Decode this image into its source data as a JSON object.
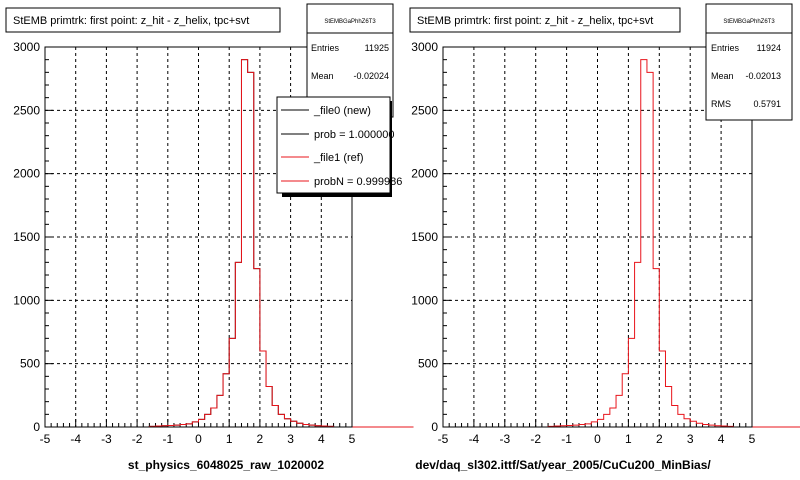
{
  "colors": {
    "ref": "#e8141b",
    "new": "#000000"
  },
  "panels": [
    {
      "title": "StEMB primtrk: first point: z_hit - z_helix, tpc+svt",
      "stats": {
        "name": "StEMBGaPhhZ6T3",
        "rows": [
          {
            "label": "Entries",
            "value": "11925"
          },
          {
            "label": "Mean",
            "value": "-0.02024"
          }
        ]
      },
      "legend": [
        {
          "label": "_file0 (new)",
          "color": "#000000"
        },
        {
          "label": "prob = 1.000000",
          "color": "#000000"
        },
        {
          "label": "_file1 (ref)",
          "color": "#e8141b"
        },
        {
          "label": "probN = 0.999986",
          "color": "#e8141b"
        }
      ],
      "xlabel": "st_physics_6048025_raw_1020002"
    },
    {
      "title": "StEMB primtrk: first point: z_hit - z_helix, tpc+svt",
      "stats": {
        "name": "StEMBGaPhhZ6T3",
        "rows": [
          {
            "label": "Entries",
            "value": "11924"
          },
          {
            "label": "Mean",
            "value": "-0.02013"
          },
          {
            "label": "RMS",
            "value": "0.5791"
          }
        ]
      },
      "legend": [],
      "xlabel": "dev/daq_sl302.ittf/Sat/year_2005/CuCu200_MinBias/"
    }
  ],
  "chart_data": [
    {
      "type": "bar",
      "histogram": true,
      "title": "StEMB primtrk: first point: z_hit - z_helix, tpc+svt",
      "xlabel": "st_physics_6048025_raw_1020002",
      "ylabel": "",
      "xlim": [
        -5,
        5
      ],
      "ylim": [
        0,
        3000
      ],
      "bin_width": 0.2,
      "xticks": [
        -5,
        -4,
        -3,
        -2,
        -1,
        0,
        1,
        2,
        3,
        4,
        5
      ],
      "yticks": [
        0,
        500,
        1000,
        1500,
        2000,
        2500,
        3000
      ],
      "grid": true,
      "legend_position": "top-right",
      "series": [
        {
          "name": "_file0 (new)",
          "values": [
            0,
            0,
            0,
            0,
            0,
            0,
            0,
            0,
            0,
            0,
            0,
            0,
            0,
            0,
            0,
            0,
            0,
            5,
            8,
            10,
            12,
            15,
            20,
            25,
            40,
            60,
            100,
            150,
            250,
            420,
            700,
            1300,
            2900,
            2800,
            1250,
            600,
            320,
            170,
            100,
            65,
            45,
            30,
            20,
            15,
            10,
            8,
            5,
            0,
            0,
            0,
            0,
            0,
            0,
            0,
            0,
            0,
            0,
            0,
            0,
            0
          ]
        },
        {
          "name": "_file1 (ref)",
          "values": [
            0,
            0,
            0,
            0,
            0,
            0,
            0,
            0,
            0,
            0,
            0,
            0,
            0,
            0,
            0,
            0,
            0,
            5,
            8,
            10,
            12,
            15,
            20,
            25,
            40,
            60,
            100,
            150,
            250,
            420,
            700,
            1300,
            2900,
            2800,
            1250,
            600,
            320,
            170,
            100,
            65,
            45,
            30,
            20,
            15,
            10,
            8,
            5,
            0,
            0,
            0,
            0,
            0,
            0,
            0,
            0,
            0,
            0,
            0,
            0,
            0
          ]
        }
      ]
    },
    {
      "type": "bar",
      "histogram": true,
      "title": "StEMB primtrk: first point: z_hit - z_helix, tpc+svt",
      "xlabel": "dev/daq_sl302.ittf/Sat/year_2005/CuCu200_MinBias/",
      "ylabel": "",
      "xlim": [
        -5,
        5
      ],
      "ylim": [
        0,
        3000
      ],
      "bin_width": 0.2,
      "xticks": [
        -5,
        -4,
        -3,
        -2,
        -1,
        0,
        1,
        2,
        3,
        4,
        5
      ],
      "yticks": [
        0,
        500,
        1000,
        1500,
        2000,
        2500,
        3000
      ],
      "grid": true,
      "series": [
        {
          "values": [
            0,
            0,
            0,
            0,
            0,
            0,
            0,
            0,
            0,
            0,
            0,
            0,
            0,
            0,
            0,
            0,
            0,
            5,
            8,
            10,
            12,
            15,
            20,
            25,
            40,
            60,
            100,
            150,
            250,
            420,
            700,
            1300,
            2900,
            2800,
            1250,
            600,
            320,
            170,
            100,
            65,
            45,
            30,
            20,
            15,
            10,
            8,
            5,
            0,
            0,
            0,
            0,
            0,
            0,
            0,
            0,
            0,
            0,
            0,
            0,
            0
          ]
        }
      ]
    }
  ]
}
